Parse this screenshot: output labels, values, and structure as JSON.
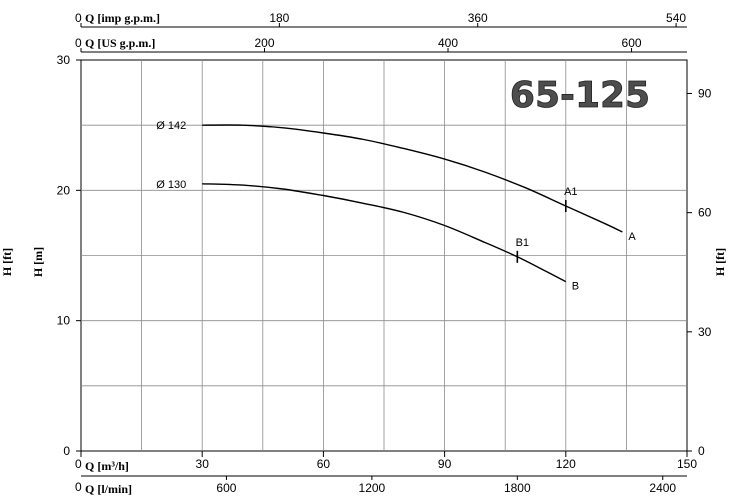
{
  "chart_data": {
    "type": "line",
    "title": "65-125",
    "xlabel": "Q [m³/h]",
    "ylabel": "H [m]",
    "xlim": [
      0,
      150
    ],
    "ylim": [
      0,
      30
    ],
    "grid": true,
    "x_ticks": [
      "0",
      "30",
      "60",
      "90",
      "120",
      "150"
    ],
    "y_ticks": [
      "0",
      "10",
      "20",
      "30"
    ],
    "y2_axis": {
      "label": "H [ft]",
      "ticks": [
        "0",
        "30",
        "60",
        "90"
      ]
    },
    "left_extra_label": "H [ft]",
    "secondary_x_axes": [
      {
        "position": "top",
        "label": "Q [imp g.p.m.]",
        "zero": "0",
        "ticks": [
          "180",
          "360",
          "540"
        ]
      },
      {
        "position": "top",
        "label": "Q [US g.p.m.]",
        "zero": "0",
        "ticks": [
          "200",
          "400",
          "600"
        ]
      },
      {
        "position": "bottom",
        "label": "Q [l/min]",
        "zero": "0",
        "ticks": [
          "600",
          "1200",
          "1800",
          "2400"
        ]
      }
    ],
    "series": [
      {
        "name": "A",
        "diameter_label": "Ø 142",
        "point_label": "A1",
        "point": [
          120,
          18.8
        ],
        "x": [
          30,
          40,
          50,
          60,
          70,
          80,
          90,
          100,
          110,
          120,
          130,
          134
        ],
        "y": [
          25.0,
          25.0,
          24.8,
          24.4,
          23.9,
          23.2,
          22.4,
          21.4,
          20.2,
          18.8,
          17.4,
          16.8
        ]
      },
      {
        "name": "B",
        "diameter_label": "Ø 130",
        "point_label": "B1",
        "point": [
          108,
          14.9
        ],
        "x": [
          30,
          40,
          50,
          60,
          70,
          80,
          90,
          100,
          108,
          115,
          120
        ],
        "y": [
          20.5,
          20.4,
          20.1,
          19.6,
          19.0,
          18.3,
          17.3,
          16.0,
          14.9,
          13.8,
          13.0
        ]
      }
    ]
  }
}
